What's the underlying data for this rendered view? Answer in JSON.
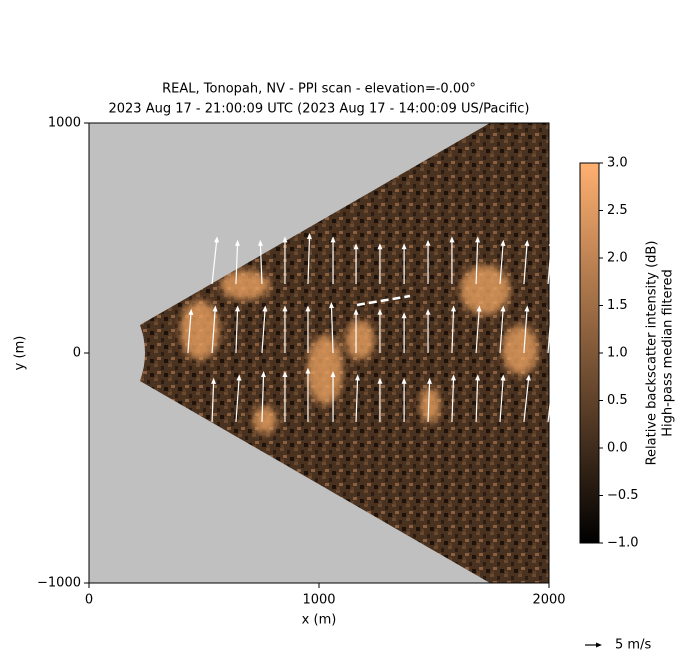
{
  "chart_data": {
    "type": "quiver",
    "title": "REAL, Tonopah, NV - PPI scan - elevation=-0.00°",
    "subtitle": "2023 Aug 17 - 21:00:09 UTC (2023 Aug 17 - 14:00:09 US/Pacific)",
    "x_label": "x (m)",
    "y_label": "y (m)",
    "xlim": [
      0,
      2000
    ],
    "xticks": [
      0,
      1000,
      2000
    ],
    "ylim": [
      -1000,
      1000
    ],
    "yticks": [
      {
        "value": -1000,
        "label": "−1000"
      },
      0,
      1000
    ],
    "arrow_color": "#ffffff",
    "quiver": {
      "x": [
        430,
        535,
        535,
        535,
        639,
        639,
        639,
        752,
        752,
        752,
        852,
        852,
        852,
        952,
        952,
        952,
        1061,
        1061,
        1061,
        1161,
        1161,
        1161,
        1265,
        1265,
        1265,
        1370,
        1370,
        1370,
        1474,
        1474,
        1474,
        1578,
        1578,
        1578,
        1683,
        1683,
        1683,
        1787,
        1787,
        1787,
        1891,
        1891,
        1891,
        1996,
        1996,
        1996
      ],
      "y": [
        0,
        -300,
        0,
        300,
        -300,
        0,
        300,
        -300,
        0,
        300,
        -300,
        0,
        300,
        -300,
        0,
        300,
        -300,
        0,
        300,
        -300,
        0,
        300,
        -300,
        0,
        300,
        -300,
        0,
        300,
        -300,
        0,
        300,
        -300,
        0,
        300,
        -300,
        0,
        300,
        -300,
        0,
        300,
        -300,
        0,
        300,
        -300,
        0,
        300
      ],
      "u": [
        1,
        0.5,
        1,
        1.5,
        1,
        0.5,
        0.5,
        0.5,
        1,
        -0.5,
        0,
        0,
        0,
        0,
        0,
        0.5,
        0,
        -0.5,
        0,
        0.5,
        0,
        0,
        0,
        0,
        0,
        0,
        0,
        0,
        0.5,
        0,
        0,
        0.5,
        0.5,
        0,
        0.5,
        1,
        0.5,
        1,
        1,
        1,
        1.5,
        1,
        1,
        1.5,
        1,
        1
      ],
      "v": [
        13,
        13,
        14,
        14,
        14,
        14,
        13,
        15,
        14,
        13,
        15,
        14,
        14,
        16,
        14,
        15,
        15,
        15,
        14,
        14,
        13,
        12,
        13,
        13,
        12,
        13,
        12,
        12,
        13,
        13,
        13,
        14,
        14,
        14,
        14,
        14,
        14,
        14,
        14,
        13,
        14,
        14,
        13,
        14,
        14,
        13
      ]
    },
    "quiver_key": {
      "value": 5,
      "label": "5 m/s"
    },
    "colorbar": {
      "label": [
        "Relative backscatter intensity (dB)",
        "High-pass median filtered"
      ],
      "lim": [
        -1,
        3
      ],
      "colors": [
        "#000000",
        "#ffb070"
      ],
      "ticks": [
        {
          "value": -1,
          "label": "−1.0"
        },
        {
          "value": -0.5,
          "label": "−0.5"
        },
        {
          "value": 0,
          "label": "0.0"
        },
        {
          "value": 0.5,
          "label": "0.5"
        },
        {
          "value": 1,
          "label": "1.0"
        },
        {
          "value": 1.5,
          "label": "1.5"
        },
        {
          "value": 2,
          "label": "2.0"
        },
        {
          "value": 2.5,
          "label": "2.5"
        },
        {
          "value": 3,
          "label": "3.0"
        }
      ]
    }
  }
}
